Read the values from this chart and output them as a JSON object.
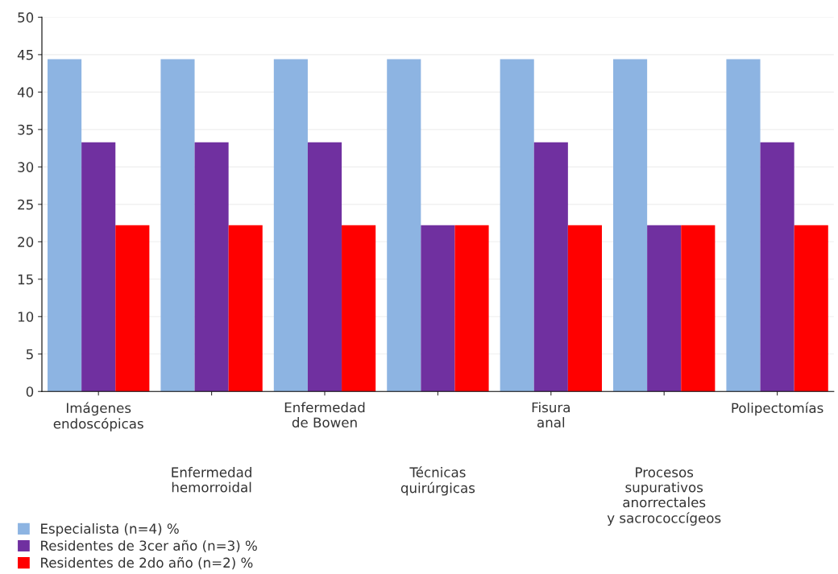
{
  "chart_data": {
    "type": "bar",
    "categories": [
      "Imágenes\nendoscópicas",
      "Enfermedad\nhemorroidal",
      "Enfermedad\nde Bowen",
      "Técnicas\nquirúrgicas",
      "Fisura\nanal",
      "Procesos\nsupurativos\nanorrectales\ny sacrococcígeos",
      "Polipectomías"
    ],
    "series": [
      {
        "name": "Especialista (n=4) %",
        "color": "#8db4e2",
        "values": [
          44.4,
          44.4,
          44.4,
          44.4,
          44.4,
          44.4,
          44.4
        ]
      },
      {
        "name": "Residentes de 3cer año (n=3) %",
        "color": "#7030a0",
        "values": [
          33.3,
          33.3,
          33.3,
          22.2,
          33.3,
          22.2,
          33.3
        ]
      },
      {
        "name": "Residentes de 2do año (n=2) %",
        "color": "#ff0000",
        "values": [
          22.2,
          22.2,
          22.2,
          22.2,
          22.2,
          22.2,
          22.2
        ]
      }
    ],
    "ylim": [
      0,
      50
    ],
    "yticks": [
      0,
      5,
      10,
      15,
      20,
      25,
      30,
      35,
      40,
      45,
      50
    ],
    "grid": "y",
    "legend": "bottom left"
  }
}
